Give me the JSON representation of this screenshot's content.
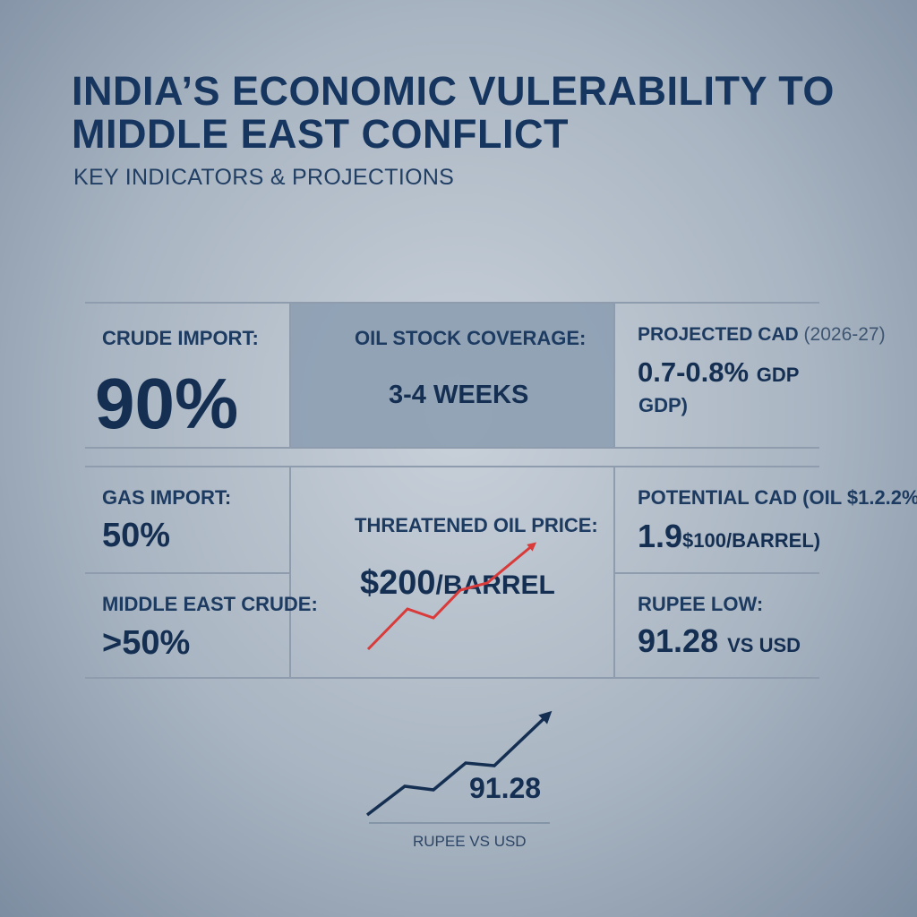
{
  "header": {
    "title": "INDIA’S ECONOMIC VULERABILITY TO MIDDLE EAST CONFLICT",
    "subtitle": "KEY INDICATORS & PROJECTIONS"
  },
  "cards": {
    "crude_import": {
      "label": "CRUDE IMPORT:",
      "value": "90%"
    },
    "oil_stock": {
      "label": "OIL STOCK COVERAGE:",
      "value": "3-4 WEEKS"
    },
    "projected_cad": {
      "label": "PROJECTED CAD",
      "label_period": "(2026-27)",
      "value": "0.7-0.8%",
      "value_unit": "GDP",
      "value_extra": "GDP)"
    },
    "gas_import": {
      "label": "GAS IMPORT:",
      "value": "50%"
    },
    "middle_east_crude": {
      "label": "MIDDLE EAST CRUDE:",
      "value": ">50%"
    },
    "threatened_oil": {
      "label": "THREATENED OIL PRICE:",
      "value": "$200",
      "value_unit": "/BARREL"
    },
    "potential_cad": {
      "label": "POTENTIAL CAD (OIL $1.2.2%",
      "value": "1.9",
      "value_unit": "$100/BARREL)"
    },
    "rupee_low": {
      "label": "RUPEE LOW:",
      "value": "91.28",
      "value_unit": "VS USD"
    }
  },
  "trend_chart": {
    "value_label": "91.28",
    "caption": "RUPEE VS USD"
  },
  "colors": {
    "navy": "#142f52",
    "accent_red": "#d93a3a",
    "grid_line": "#8e9cad",
    "shaded_panel": "#8d9fb2"
  }
}
